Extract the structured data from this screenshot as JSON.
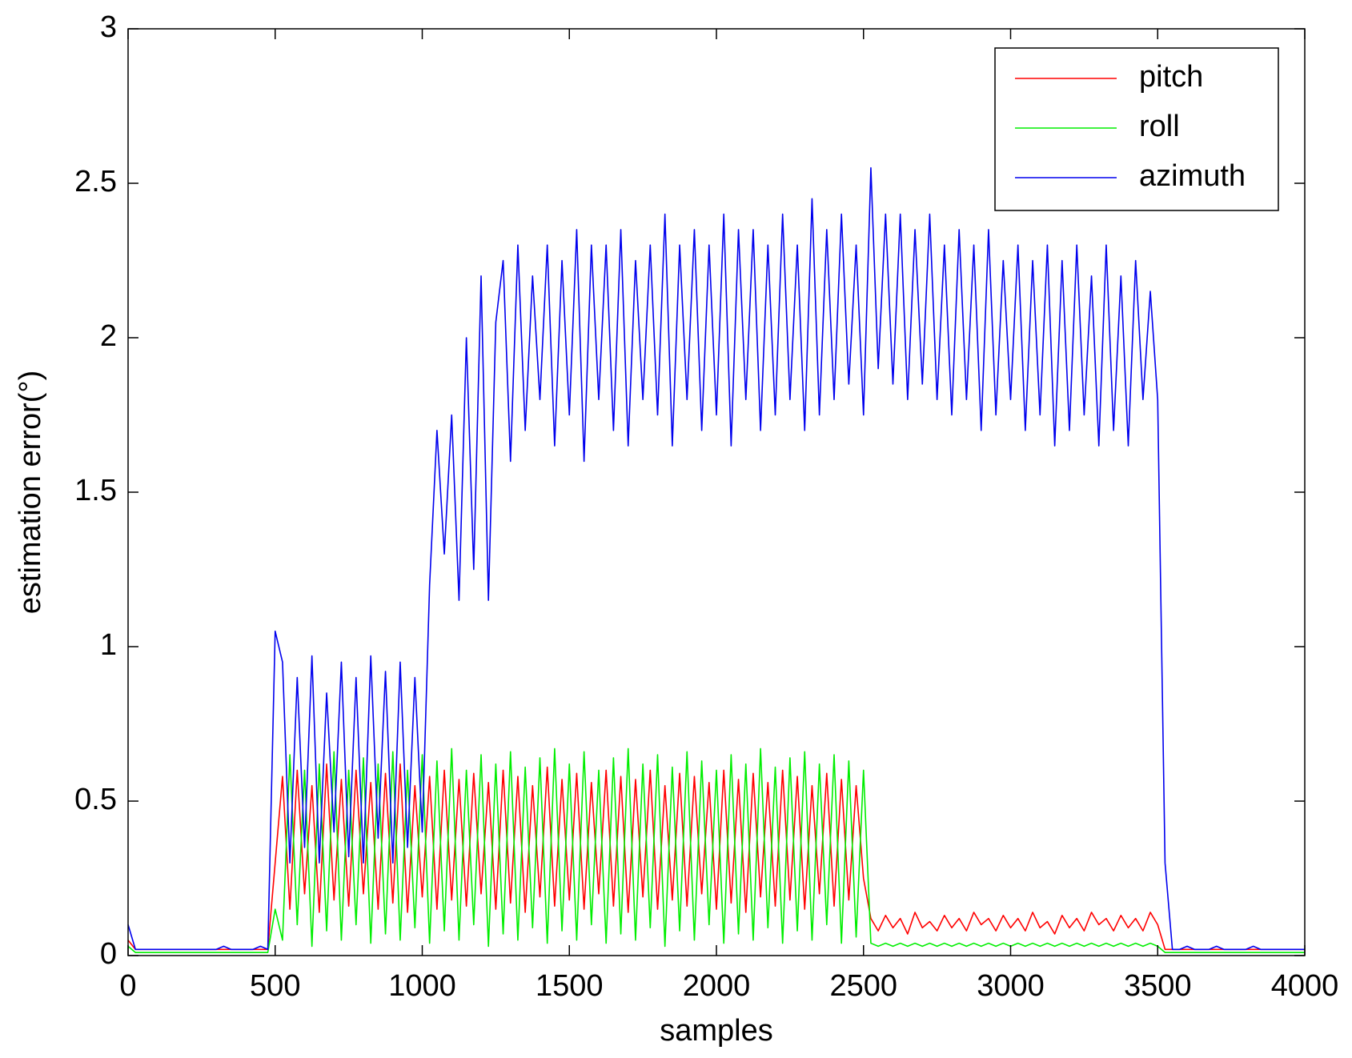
{
  "chart_data": {
    "type": "line",
    "x_label": "samples",
    "y_label": "estimation error(°)",
    "xlim": [
      0,
      4000
    ],
    "xticks": [
      0,
      500,
      1000,
      1500,
      2000,
      2500,
      3000,
      3500,
      4000
    ],
    "ylim": [
      0,
      3
    ],
    "yticks": [
      0,
      0.5,
      1,
      1.5,
      2,
      2.5,
      3
    ],
    "grid": false,
    "legend": "upper right",
    "x": [
      0,
      25,
      50,
      75,
      100,
      125,
      150,
      175,
      200,
      225,
      250,
      275,
      300,
      325,
      350,
      375,
      400,
      425,
      450,
      475,
      500,
      525,
      550,
      575,
      600,
      625,
      650,
      675,
      700,
      725,
      750,
      775,
      800,
      825,
      850,
      875,
      900,
      925,
      950,
      975,
      1000,
      1025,
      1050,
      1075,
      1100,
      1125,
      1150,
      1175,
      1200,
      1225,
      1250,
      1275,
      1300,
      1325,
      1350,
      1375,
      1400,
      1425,
      1450,
      1475,
      1500,
      1525,
      1550,
      1575,
      1600,
      1625,
      1650,
      1675,
      1700,
      1725,
      1750,
      1775,
      1800,
      1825,
      1850,
      1875,
      1900,
      1925,
      1950,
      1975,
      2000,
      2025,
      2050,
      2075,
      2100,
      2125,
      2150,
      2175,
      2200,
      2225,
      2250,
      2275,
      2300,
      2325,
      2350,
      2375,
      2400,
      2425,
      2450,
      2475,
      2500,
      2525,
      2550,
      2575,
      2600,
      2625,
      2650,
      2675,
      2700,
      2725,
      2750,
      2775,
      2800,
      2825,
      2850,
      2875,
      2900,
      2925,
      2950,
      2975,
      3000,
      3025,
      3050,
      3075,
      3100,
      3125,
      3150,
      3175,
      3200,
      3225,
      3250,
      3275,
      3300,
      3325,
      3350,
      3375,
      3400,
      3425,
      3450,
      3475,
      3500,
      3525,
      3550,
      3575,
      3600,
      3625,
      3650,
      3675,
      3700,
      3725,
      3750,
      3775,
      3800,
      3825,
      3850,
      3875,
      3900,
      3925,
      3950,
      3975,
      4000
    ],
    "series": [
      {
        "name": "pitch",
        "color": "#ff0000",
        "values": [
          0.05,
          0.02,
          0.02,
          0.02,
          0.02,
          0.02,
          0.02,
          0.02,
          0.02,
          0.02,
          0.02,
          0.02,
          0.02,
          0.02,
          0.02,
          0.02,
          0.02,
          0.02,
          0.02,
          0.02,
          0.3,
          0.58,
          0.15,
          0.6,
          0.2,
          0.55,
          0.14,
          0.62,
          0.18,
          0.57,
          0.16,
          0.6,
          0.2,
          0.56,
          0.15,
          0.59,
          0.17,
          0.62,
          0.14,
          0.55,
          0.19,
          0.58,
          0.15,
          0.6,
          0.18,
          0.57,
          0.16,
          0.59,
          0.2,
          0.56,
          0.15,
          0.6,
          0.17,
          0.58,
          0.14,
          0.55,
          0.19,
          0.61,
          0.16,
          0.57,
          0.18,
          0.59,
          0.15,
          0.56,
          0.2,
          0.6,
          0.16,
          0.58,
          0.14,
          0.57,
          0.19,
          0.6,
          0.15,
          0.55,
          0.18,
          0.59,
          0.16,
          0.58,
          0.2,
          0.56,
          0.15,
          0.6,
          0.17,
          0.57,
          0.14,
          0.59,
          0.19,
          0.56,
          0.16,
          0.6,
          0.18,
          0.58,
          0.15,
          0.55,
          0.2,
          0.59,
          0.16,
          0.57,
          0.18,
          0.55,
          0.25,
          0.12,
          0.08,
          0.13,
          0.09,
          0.12,
          0.07,
          0.14,
          0.09,
          0.11,
          0.08,
          0.13,
          0.09,
          0.12,
          0.08,
          0.14,
          0.1,
          0.12,
          0.08,
          0.13,
          0.09,
          0.12,
          0.08,
          0.14,
          0.09,
          0.11,
          0.07,
          0.13,
          0.09,
          0.12,
          0.08,
          0.14,
          0.1,
          0.12,
          0.08,
          0.13,
          0.09,
          0.12,
          0.08,
          0.14,
          0.1,
          0.02,
          0.02,
          0.02,
          0.02,
          0.02,
          0.02,
          0.02,
          0.02,
          0.02,
          0.02,
          0.02,
          0.02,
          0.02,
          0.02,
          0.02,
          0.02,
          0.02,
          0.02,
          0.02,
          0.02
        ]
      },
      {
        "name": "roll",
        "color": "#00ee00",
        "values": [
          0.03,
          0.01,
          0.01,
          0.01,
          0.01,
          0.01,
          0.01,
          0.01,
          0.01,
          0.01,
          0.01,
          0.01,
          0.01,
          0.01,
          0.01,
          0.01,
          0.01,
          0.01,
          0.01,
          0.01,
          0.15,
          0.05,
          0.65,
          0.1,
          0.6,
          0.03,
          0.62,
          0.08,
          0.66,
          0.05,
          0.6,
          0.1,
          0.64,
          0.04,
          0.62,
          0.07,
          0.66,
          0.05,
          0.6,
          0.09,
          0.65,
          0.04,
          0.63,
          0.08,
          0.67,
          0.05,
          0.6,
          0.1,
          0.65,
          0.03,
          0.62,
          0.07,
          0.66,
          0.05,
          0.61,
          0.09,
          0.64,
          0.04,
          0.67,
          0.08,
          0.62,
          0.05,
          0.66,
          0.1,
          0.6,
          0.04,
          0.64,
          0.07,
          0.67,
          0.05,
          0.62,
          0.09,
          0.65,
          0.03,
          0.61,
          0.08,
          0.66,
          0.05,
          0.63,
          0.1,
          0.6,
          0.04,
          0.65,
          0.07,
          0.62,
          0.05,
          0.67,
          0.09,
          0.61,
          0.04,
          0.64,
          0.08,
          0.66,
          0.05,
          0.62,
          0.1,
          0.65,
          0.04,
          0.63,
          0.06,
          0.6,
          0.04,
          0.03,
          0.04,
          0.03,
          0.04,
          0.03,
          0.04,
          0.03,
          0.04,
          0.03,
          0.04,
          0.03,
          0.04,
          0.03,
          0.04,
          0.03,
          0.04,
          0.03,
          0.04,
          0.03,
          0.04,
          0.03,
          0.04,
          0.03,
          0.04,
          0.03,
          0.04,
          0.03,
          0.04,
          0.03,
          0.04,
          0.03,
          0.04,
          0.03,
          0.04,
          0.03,
          0.04,
          0.03,
          0.04,
          0.03,
          0.01,
          0.01,
          0.01,
          0.01,
          0.01,
          0.01,
          0.01,
          0.01,
          0.01,
          0.01,
          0.01,
          0.01,
          0.01,
          0.01,
          0.01,
          0.01,
          0.01,
          0.01,
          0.01,
          0.01
        ]
      },
      {
        "name": "azimuth",
        "color": "#0000ee",
        "values": [
          0.1,
          0.02,
          0.02,
          0.02,
          0.02,
          0.02,
          0.02,
          0.02,
          0.02,
          0.02,
          0.02,
          0.02,
          0.02,
          0.03,
          0.02,
          0.02,
          0.02,
          0.02,
          0.03,
          0.02,
          1.05,
          0.95,
          0.3,
          0.9,
          0.35,
          0.97,
          0.3,
          0.85,
          0.4,
          0.95,
          0.32,
          0.9,
          0.3,
          0.97,
          0.38,
          0.92,
          0.3,
          0.95,
          0.35,
          0.9,
          0.4,
          1.2,
          1.7,
          1.3,
          1.75,
          1.15,
          2.0,
          1.25,
          2.2,
          1.15,
          2.05,
          2.25,
          1.6,
          2.3,
          1.7,
          2.2,
          1.8,
          2.3,
          1.65,
          2.25,
          1.75,
          2.35,
          1.6,
          2.3,
          1.8,
          2.3,
          1.7,
          2.35,
          1.65,
          2.25,
          1.8,
          2.3,
          1.75,
          2.4,
          1.65,
          2.3,
          1.8,
          2.35,
          1.7,
          2.3,
          1.75,
          2.4,
          1.65,
          2.35,
          1.8,
          2.35,
          1.7,
          2.3,
          1.75,
          2.4,
          1.8,
          2.3,
          1.7,
          2.45,
          1.75,
          2.35,
          1.8,
          2.4,
          1.85,
          2.3,
          1.75,
          2.55,
          1.9,
          2.4,
          1.85,
          2.4,
          1.8,
          2.35,
          1.85,
          2.4,
          1.8,
          2.3,
          1.75,
          2.35,
          1.8,
          2.3,
          1.7,
          2.35,
          1.75,
          2.25,
          1.8,
          2.3,
          1.7,
          2.25,
          1.75,
          2.3,
          1.65,
          2.25,
          1.7,
          2.3,
          1.75,
          2.2,
          1.65,
          2.3,
          1.7,
          2.2,
          1.65,
          2.25,
          1.8,
          2.15,
          1.8,
          0.3,
          0.02,
          0.02,
          0.03,
          0.02,
          0.02,
          0.02,
          0.03,
          0.02,
          0.02,
          0.02,
          0.02,
          0.03,
          0.02,
          0.02,
          0.02,
          0.02,
          0.02,
          0.02,
          0.02
        ]
      }
    ]
  }
}
